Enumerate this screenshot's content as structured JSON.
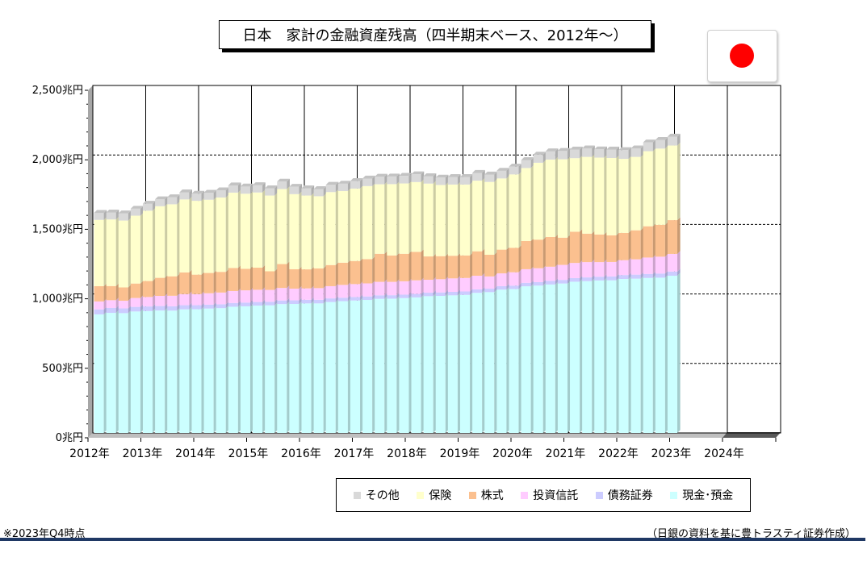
{
  "title": "日本　家計の金融資産残高（四半期末ベース、2012年～）",
  "legend": [
    {
      "label": "その他",
      "color": "#d9d9d9"
    },
    {
      "label": "保険",
      "color": "#ffffcc"
    },
    {
      "label": "株式",
      "color": "#fbc08f"
    },
    {
      "label": "投資信託",
      "color": "#ffccff"
    },
    {
      "label": "債務証券",
      "color": "#ccccff"
    },
    {
      "label": "現金･預金",
      "color": "#ccffff"
    }
  ],
  "note_left": "※2023年Q4時点",
  "note_right": "（日銀の資料を基に豊トラスティ証券作成）",
  "chart_data": {
    "type": "bar",
    "stacked": true,
    "categories": [
      "2012Q1",
      "2012Q2",
      "2012Q3",
      "2012Q4",
      "2013Q1",
      "2013Q2",
      "2013Q3",
      "2013Q4",
      "2014Q1",
      "2014Q2",
      "2014Q3",
      "2014Q4",
      "2015Q1",
      "2015Q2",
      "2015Q3",
      "2015Q4",
      "2016Q1",
      "2016Q2",
      "2016Q3",
      "2016Q4",
      "2017Q1",
      "2017Q2",
      "2017Q3",
      "2017Q4",
      "2018Q1",
      "2018Q2",
      "2018Q3",
      "2018Q4",
      "2019Q1",
      "2019Q2",
      "2019Q3",
      "2019Q4",
      "2020Q1",
      "2020Q2",
      "2020Q3",
      "2020Q4",
      "2021Q1",
      "2021Q2",
      "2021Q3",
      "2021Q4",
      "2022Q1",
      "2022Q2",
      "2022Q3",
      "2022Q4",
      "2023Q1",
      "2023Q2",
      "2023Q3",
      "2023Q4"
    ],
    "x_tick_labels": [
      "2012年",
      "2013年",
      "2014年",
      "2015年",
      "2016年",
      "2017年",
      "2018年",
      "2019年",
      "2020年",
      "2021年",
      "2022年",
      "2023年",
      "2024年"
    ],
    "y_tick_labels": [
      "0兆円",
      "500兆円",
      "1,000兆円",
      "1,500兆円",
      "2,000兆円",
      "2,500兆円"
    ],
    "ylim": [
      0,
      2500
    ],
    "grid": true,
    "legend_position": "bottom-right",
    "series": [
      {
        "name": "現金･預金",
        "color": "#ccffff",
        "values": [
          853,
          864,
          862,
          874,
          877,
          881,
          880,
          889,
          890,
          895,
          898,
          908,
          911,
          916,
          918,
          927,
          928,
          932,
          932,
          942,
          948,
          953,
          957,
          965,
          966,
          970,
          975,
          984,
          986,
          990,
          993,
          1008,
          1013,
          1031,
          1035,
          1055,
          1060,
          1068,
          1075,
          1088,
          1092,
          1097,
          1098,
          1108,
          1110,
          1115,
          1117,
          1131
        ]
      },
      {
        "name": "債務証券",
        "color": "#ccccff",
        "values": [
          36,
          35,
          34,
          33,
          33,
          32,
          31,
          30,
          29,
          28,
          28,
          27,
          27,
          26,
          26,
          26,
          26,
          26,
          26,
          26,
          25,
          25,
          25,
          25,
          25,
          25,
          25,
          25,
          25,
          25,
          25,
          25,
          25,
          25,
          25,
          25,
          25,
          26,
          26,
          26,
          27,
          27,
          28,
          28,
          29,
          29,
          30,
          30
        ]
      },
      {
        "name": "投資信託",
        "color": "#ffccff",
        "values": [
          57,
          56,
          55,
          64,
          68,
          73,
          76,
          80,
          80,
          82,
          84,
          86,
          88,
          88,
          85,
          90,
          84,
          82,
          84,
          88,
          92,
          93,
          94,
          97,
          96,
          96,
          98,
          93,
          95,
          97,
          97,
          98,
          88,
          92,
          96,
          98,
          100,
          102,
          108,
          109,
          110,
          105,
          104,
          107,
          110,
          118,
          121,
          127
        ]
      },
      {
        "name": "株式",
        "color": "#fbc08f",
        "values": [
          110,
          102,
          96,
          104,
          115,
          130,
          140,
          156,
          140,
          146,
          149,
          166,
          155,
          159,
          134,
          172,
          140,
          137,
          142,
          152,
          160,
          166,
          175,
          202,
          190,
          198,
          205,
          168,
          166,
          163,
          162,
          176,
          156,
          171,
          176,
          203,
          206,
          214,
          196,
          225,
          205,
          199,
          192,
          196,
          209,
          225,
          229,
          243
        ]
      },
      {
        "name": "保険",
        "color": "#ffffcc",
        "values": [
          477,
          479,
          481,
          488,
          506,
          515,
          518,
          525,
          531,
          527,
          535,
          542,
          540,
          541,
          545,
          540,
          540,
          531,
          519,
          525,
          515,
          521,
          525,
          500,
          513,
          506,
          502,
          524,
          512,
          512,
          510,
          508,
          524,
          512,
          528,
          525,
          553,
          557,
          564,
          529,
          552,
          553,
          556,
          533,
          528,
          540,
          549,
          537
        ]
      },
      {
        "name": "その他",
        "color": "#d9d9d9",
        "values": [
          50,
          50,
          51,
          50,
          50,
          50,
          50,
          51,
          51,
          50,
          51,
          52,
          52,
          52,
          52,
          53,
          53,
          52,
          51,
          52,
          53,
          54,
          54,
          54,
          55,
          55,
          56,
          53,
          53,
          54,
          54,
          56,
          53,
          55,
          56,
          57,
          58,
          59,
          60,
          62,
          61,
          59,
          61,
          63,
          61,
          63,
          62,
          64
        ]
      }
    ]
  }
}
